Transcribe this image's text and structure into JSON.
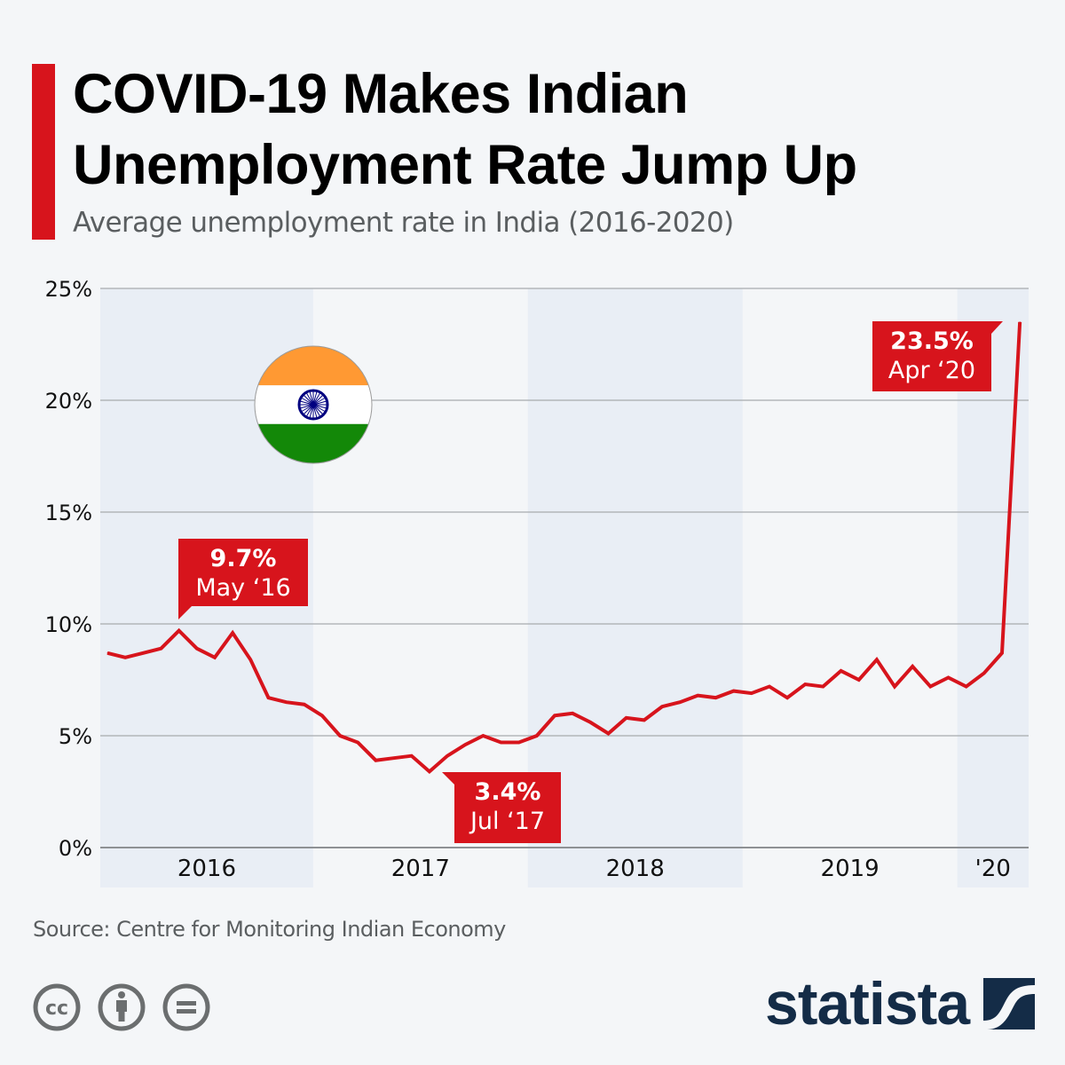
{
  "header": {
    "title_line1": "COVID-19 Makes Indian",
    "title_line2": "Unemployment Rate Jump Up",
    "subtitle": "Average unemployment rate in India (2016-2020)"
  },
  "footer": {
    "source": "Source: Centre for Monitoring Indian Economy",
    "license_icons": [
      "cc-icon",
      "attribution-icon",
      "no-derivatives-icon"
    ],
    "logo_text": "statista"
  },
  "colors": {
    "accent": "#d7141c",
    "line": "#d7141c",
    "band": "#e9eef5",
    "grid": "#a8abae",
    "logo": "#142c47",
    "flag_saffron": "#ff9933",
    "flag_green": "#138808",
    "flag_chakra": "#000080"
  },
  "chart_data": {
    "type": "line",
    "title": "COVID-19 Makes Indian Unemployment Rate Jump Up",
    "subtitle": "Average unemployment rate in India (2016-2020)",
    "xlabel": "",
    "ylabel": "",
    "ylim": [
      0,
      25
    ],
    "yticks": [
      0,
      5,
      10,
      15,
      20,
      25
    ],
    "ytick_labels": [
      "0%",
      "5%",
      "10%",
      "15%",
      "20%",
      "25%"
    ],
    "grid": true,
    "x_start": "Jan 2016",
    "x_end": "Apr 2020",
    "x_period_months": 52,
    "year_bands": [
      {
        "label": "2016",
        "start_month": 0,
        "end_month": 12,
        "shaded": true
      },
      {
        "label": "2017",
        "start_month": 12,
        "end_month": 24,
        "shaded": false
      },
      {
        "label": "2018",
        "start_month": 24,
        "end_month": 36,
        "shaded": true
      },
      {
        "label": "2019",
        "start_month": 36,
        "end_month": 48,
        "shaded": false
      },
      {
        "label": "'20",
        "start_month": 48,
        "end_month": 52,
        "shaded": true
      }
    ],
    "series": [
      {
        "name": "Unemployment rate (%)",
        "values": [
          8.7,
          8.5,
          8.7,
          8.9,
          9.7,
          8.9,
          8.5,
          9.6,
          8.4,
          6.7,
          6.5,
          6.4,
          5.9,
          5.0,
          4.7,
          3.9,
          4.0,
          4.1,
          3.4,
          4.1,
          4.6,
          5.0,
          4.7,
          4.7,
          5.0,
          5.9,
          6.0,
          5.6,
          5.1,
          5.8,
          5.7,
          6.3,
          6.5,
          6.8,
          6.7,
          7.0,
          6.9,
          7.2,
          6.7,
          7.3,
          7.2,
          7.9,
          7.5,
          8.4,
          7.2,
          8.1,
          7.2,
          7.6,
          7.2,
          7.8,
          8.7,
          23.5
        ]
      }
    ],
    "annotations": [
      {
        "month_index": 4,
        "value_label": "9.7%",
        "date_label": "May ‘16",
        "placement": "above-right"
      },
      {
        "month_index": 18,
        "value_label": "3.4%",
        "date_label": "Jul ‘17",
        "placement": "below-right"
      },
      {
        "month_index": 51,
        "value_label": "23.5%",
        "date_label": "Apr ‘20",
        "placement": "left"
      }
    ],
    "decoration": "india-flag"
  }
}
